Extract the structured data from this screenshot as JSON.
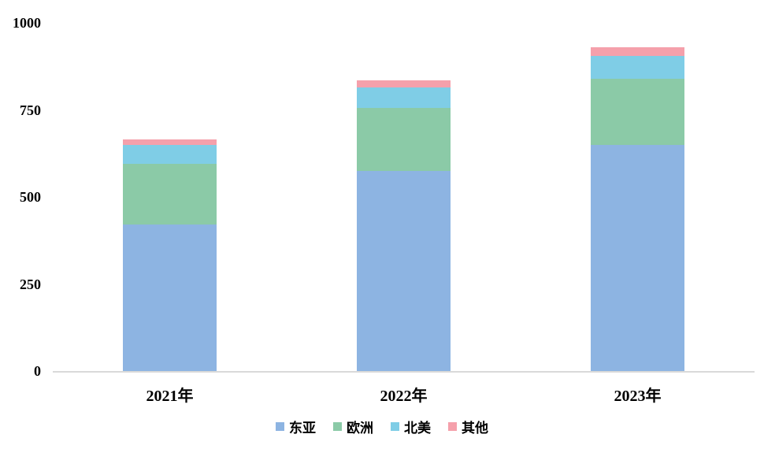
{
  "chart_data": {
    "type": "bar",
    "stacked": true,
    "title": "",
    "xlabel": "",
    "ylabel": "",
    "categories": [
      "2021年",
      "2022年",
      "2023年"
    ],
    "series": [
      {
        "name": "东亚",
        "color": "#8DB4E2",
        "values": [
          420,
          575,
          650
        ]
      },
      {
        "name": "欧洲",
        "color": "#8BCAA7",
        "values": [
          175,
          180,
          190
        ]
      },
      {
        "name": "北美",
        "color": "#7FCDE6",
        "values": [
          55,
          60,
          65
        ]
      },
      {
        "name": "其他",
        "color": "#F5A0AB",
        "values": [
          15,
          20,
          25
        ]
      }
    ],
    "ylim": [
      0,
      1000
    ],
    "yticks": [
      "0",
      "250",
      "500",
      "750",
      "1000"
    ],
    "grid": false,
    "legend_position": "bottom",
    "axis_line_color": "#D9D9D9",
    "text_color": "#000000",
    "background": "#FFFFFF"
  }
}
